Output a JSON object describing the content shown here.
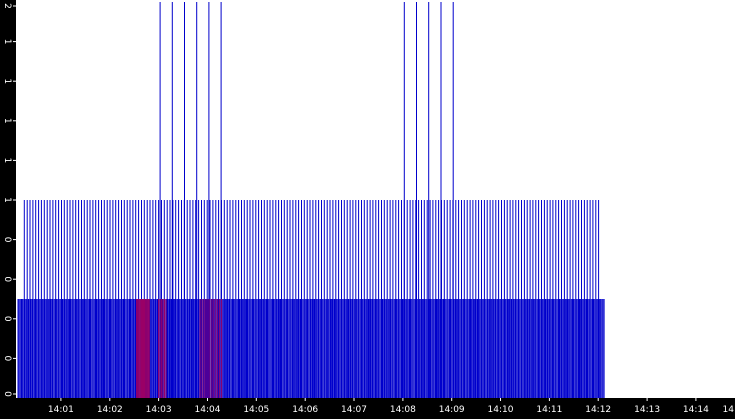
{
  "chart_data": {
    "type": "bar",
    "title": "",
    "xlabel": "",
    "ylabel": "",
    "x_ticks": [
      "14:01",
      "14:02",
      "14:03",
      "14:04",
      "14:05",
      "14:06",
      "14:07",
      "14:08",
      "14:09",
      "14:10",
      "14:11",
      "14:12",
      "14:13",
      "14:14",
      "14"
    ],
    "y_ticks": [
      "0",
      "0",
      "0",
      "0",
      "0",
      "1",
      "1",
      "1",
      "1",
      "1",
      "2"
    ],
    "xlim_minutes": [
      0.08,
      14.8
    ],
    "ylim": [
      0,
      2
    ],
    "grid": false,
    "colors": {
      "background": "#ffffff",
      "frame": "#000000",
      "series_primary": "#0000cc",
      "series_highlight": "#990066"
    },
    "series": [
      {
        "color_key": "series_primary",
        "bands": [
          {
            "start_minute": 0.12,
            "end_minute": 12.12,
            "step_minute": 0.024,
            "value": 0.5
          },
          {
            "start_minute": 0.25,
            "end_minute": 12.05,
            "step_minute": 0.0585,
            "value": 1.0
          }
        ],
        "spikes": [
          {
            "minute": 3.03,
            "value": 2.0
          },
          {
            "minute": 3.28,
            "value": 2.0
          },
          {
            "minute": 3.53,
            "value": 2.0
          },
          {
            "minute": 3.78,
            "value": 2.0
          },
          {
            "minute": 4.03,
            "value": 2.0
          },
          {
            "minute": 4.28,
            "value": 2.0
          },
          {
            "minute": 8.03,
            "value": 2.0
          },
          {
            "minute": 8.28,
            "value": 2.0
          },
          {
            "minute": 8.53,
            "value": 2.0
          },
          {
            "minute": 8.78,
            "value": 2.0
          },
          {
            "minute": 9.03,
            "value": 2.0
          }
        ]
      },
      {
        "color_key": "series_highlight",
        "bands": [
          {
            "start_minute": 2.55,
            "end_minute": 2.82,
            "step_minute": 0.02,
            "value": 0.5
          },
          {
            "start_minute": 3.0,
            "end_minute": 3.15,
            "step_minute": 0.03,
            "value": 0.5
          },
          {
            "start_minute": 3.85,
            "end_minute": 4.3,
            "step_minute": 0.04,
            "value": 0.5
          }
        ],
        "spikes": []
      }
    ]
  }
}
